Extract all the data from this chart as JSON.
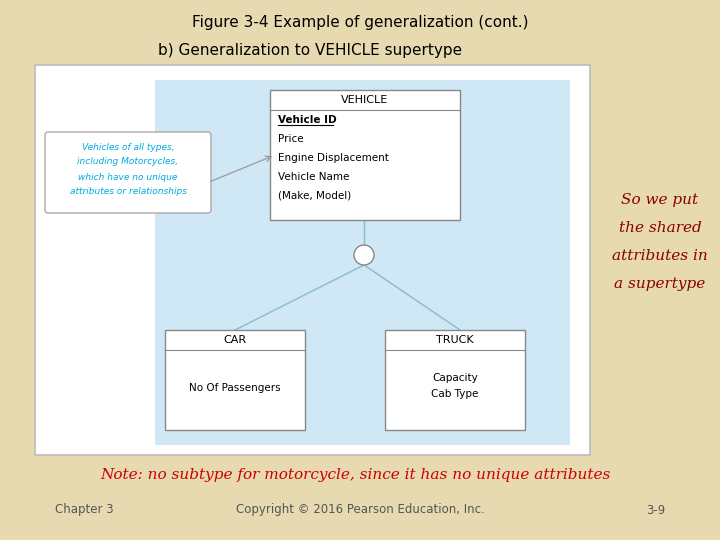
{
  "title": "Figure 3-4 Example of generalization (cont.)",
  "subtitle": "b) Generalization to VEHICLE supertype",
  "bg_color": "#e8dab0",
  "diagram_bg": "#ffffff",
  "diagram_inner_bg": "#d0e8f5",
  "title_color": "#000000",
  "subtitle_color": "#000000",
  "note_color": "#cc0000",
  "side_text_color": "#8b0000",
  "side_text": [
    "So we put",
    "the shared",
    "attributes in",
    "a supertype"
  ],
  "vehicle_box": {
    "title": "VEHICLE",
    "attrs": [
      "Vehicle ID",
      "Price",
      "Engine Displacement",
      "Vehicle Name",
      "(Make, Model)"
    ],
    "underline_attr": "Vehicle ID"
  },
  "car_box": {
    "title": "CAR",
    "attrs": [
      "No Of Passengers"
    ]
  },
  "truck_box": {
    "title": "TRUCK",
    "attrs": [
      "Capacity",
      "Cab Type"
    ]
  },
  "callout_text": [
    "Vehicles of all types,",
    "including Motorcycles,",
    "which have no unique",
    "attributes or relationships"
  ],
  "callout_text_color": "#00aadd",
  "note_text": "Note: no subtype for motorcycle, since it has no unique attributes",
  "footer_left": "Chapter 3",
  "footer_center": "Copyright © 2016 Pearson Education, Inc.",
  "footer_right": "3-9",
  "footer_color": "#555555",
  "line_color": "#88bbcc",
  "box_edge_color": "#888888"
}
